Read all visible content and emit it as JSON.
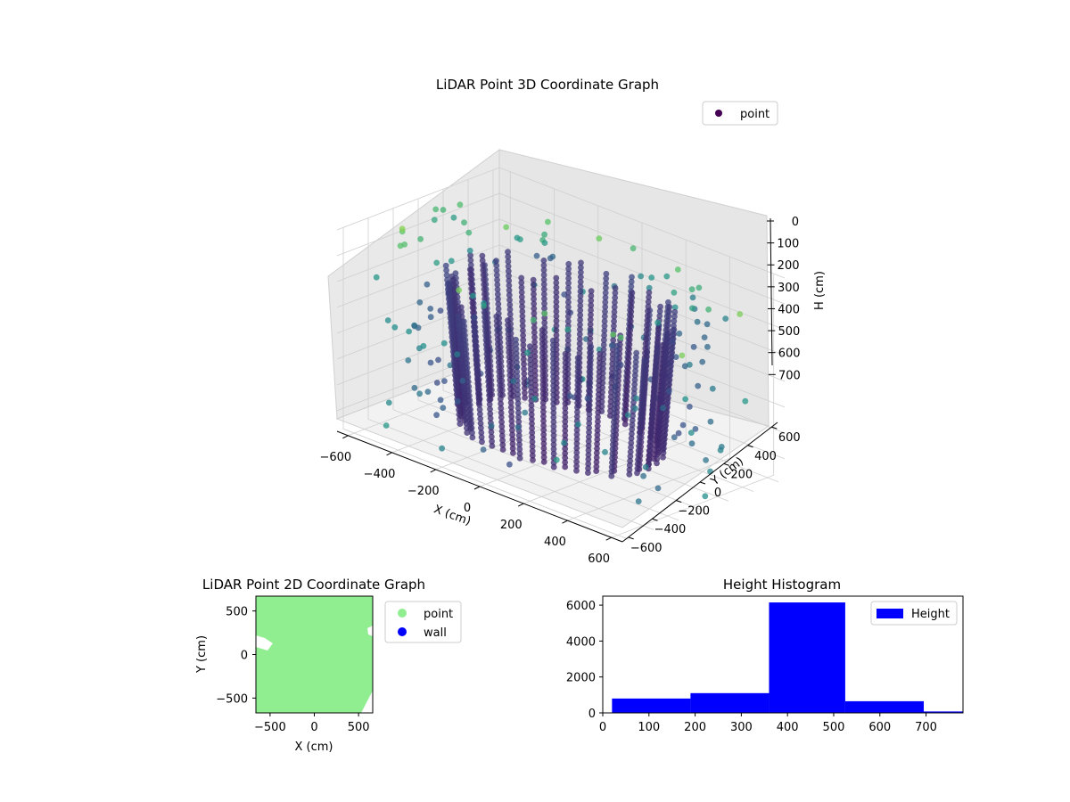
{
  "chart_data": [
    {
      "type": "scatter3d",
      "title": "LiDAR Point 3D Coordinate Graph",
      "xlabel": "X (cm)",
      "ylabel": "Y (cm)",
      "zlabel": "H (cm)",
      "xticks": [
        "−600",
        "−400",
        "−200",
        "0",
        "200",
        "400",
        "600"
      ],
      "yticks": [
        "−600",
        "−400",
        "−200",
        "0",
        "200",
        "400",
        "600"
      ],
      "zticks": [
        "0",
        "100",
        "200",
        "300",
        "400",
        "500",
        "600",
        "700"
      ],
      "xlim": [
        -650,
        650
      ],
      "ylim": [
        -650,
        650
      ],
      "zlim": [
        0,
        780
      ],
      "z_inverted": true,
      "colormap": "viridis",
      "legend": {
        "placement": "top-right",
        "entries": [
          {
            "label": "point",
            "color": "#440154"
          }
        ]
      },
      "series": [
        {
          "name": "point",
          "shape": "ring of vertical point columns",
          "ring_radius": 400,
          "column_count": 56,
          "height_range": [
            0,
            700
          ]
        }
      ]
    },
    {
      "type": "scatter",
      "title": "LiDAR Point 2D Coordinate Graph",
      "xlabel": "X (cm)",
      "ylabel": "Y (cm)",
      "xticks": [
        "−500",
        "0",
        "500"
      ],
      "yticks": [
        "−500",
        "0",
        "500"
      ],
      "xlim": [
        -660,
        660
      ],
      "ylim": [
        -670,
        670
      ],
      "legend": {
        "placement": "outside-right",
        "entries": [
          {
            "label": "point",
            "color": "#90ee90"
          },
          {
            "label": "wall",
            "color": "#0000ff"
          }
        ]
      }
    },
    {
      "type": "bar",
      "title": "Height Histogram",
      "xlabel": "",
      "ylabel": "",
      "xticks": [
        "0",
        "100",
        "200",
        "300",
        "400",
        "500",
        "600",
        "700"
      ],
      "yticks": [
        "0",
        "2000",
        "4000",
        "6000"
      ],
      "xlim": [
        0,
        780
      ],
      "ylim": [
        0,
        6500
      ],
      "legend": {
        "placement": "top-right",
        "entries": [
          {
            "label": "Height",
            "color": "#0000ff"
          }
        ]
      },
      "color": "#0000ff",
      "bins": [
        {
          "start": 20,
          "end": 190,
          "value": 800
        },
        {
          "start": 190,
          "end": 360,
          "value": 1100
        },
        {
          "start": 360,
          "end": 525,
          "value": 6150
        },
        {
          "start": 525,
          "end": 695,
          "value": 650
        },
        {
          "start": 695,
          "end": 780,
          "value": 80
        }
      ]
    }
  ]
}
